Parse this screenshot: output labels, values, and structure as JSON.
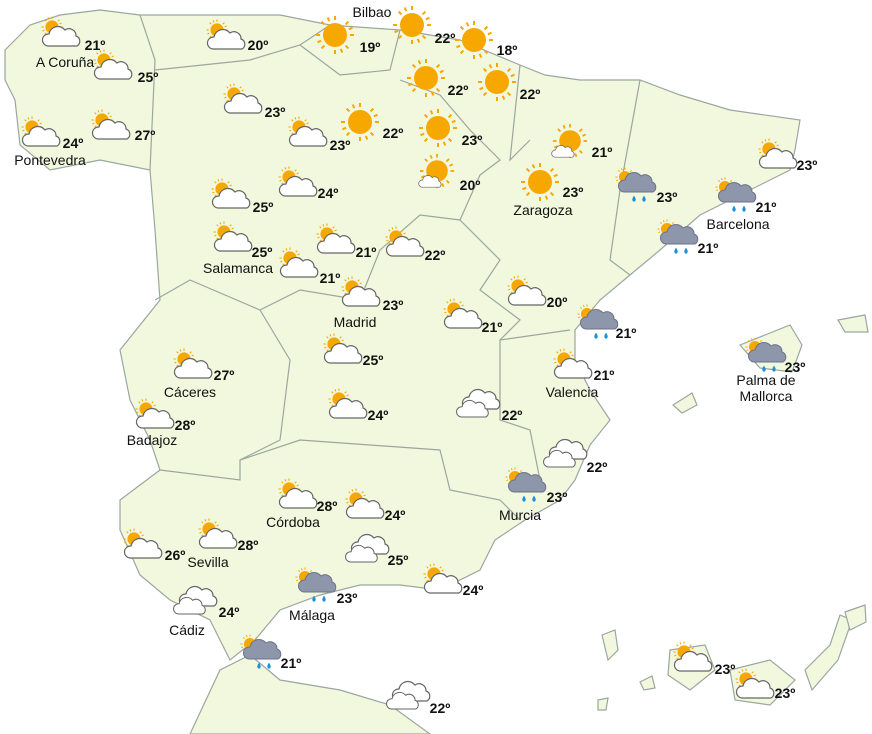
{
  "locations": [
    {
      "name": "A Coruña",
      "temp": "21º"
    },
    {
      "temp": "25º"
    },
    {
      "temp": "20º"
    },
    {
      "temp": "19º"
    },
    {
      "name": "Bilbao",
      "temp": "22º"
    },
    {
      "temp": "18º"
    },
    {
      "temp": "22º"
    },
    {
      "temp": "22º"
    },
    {
      "name": "Pontevedra",
      "temp": "24º"
    },
    {
      "temp": "27º"
    },
    {
      "temp": "23º"
    },
    {
      "temp": "23º"
    },
    {
      "temp": "22º"
    },
    {
      "temp": "23º"
    },
    {
      "temp": "21º"
    },
    {
      "temp": "20º"
    },
    {
      "name": "Zaragoza",
      "temp": "23º"
    },
    {
      "temp": "23º"
    },
    {
      "name": "Barcelona",
      "temp": "21º"
    },
    {
      "temp": "23º"
    },
    {
      "temp": "25º"
    },
    {
      "temp": "24º"
    },
    {
      "name": "Salamanca",
      "temp": "25º"
    },
    {
      "temp": "21º"
    },
    {
      "temp": "21º"
    },
    {
      "temp": "22º"
    },
    {
      "temp": "21º"
    },
    {
      "name": "Madrid",
      "temp": "23º"
    },
    {
      "temp": "21º"
    },
    {
      "temp": "20º"
    },
    {
      "temp": "21º"
    },
    {
      "name": "Palma de Mallorca",
      "temp": "23º"
    },
    {
      "name": "Cáceres",
      "temp": "27º"
    },
    {
      "temp": "25º"
    },
    {
      "name": "Valencia",
      "temp": "21º"
    },
    {
      "name": "Badajoz",
      "temp": "28º"
    },
    {
      "temp": "24º"
    },
    {
      "temp": "22º"
    },
    {
      "temp": "22º"
    },
    {
      "name": "Murcia",
      "temp": "23º"
    },
    {
      "name": "Córdoba",
      "temp": "28º"
    },
    {
      "temp": "24º"
    },
    {
      "name": "Sevilla",
      "temp": "28º"
    },
    {
      "temp": "26º"
    },
    {
      "temp": "25º"
    },
    {
      "temp": "24º"
    },
    {
      "name": "Málaga",
      "temp": "23º"
    },
    {
      "name": "Cádiz",
      "temp": "24º"
    },
    {
      "temp": "21º"
    },
    {
      "temp": "22º"
    },
    {
      "temp": "23º"
    },
    {
      "temp": "23º"
    }
  ]
}
